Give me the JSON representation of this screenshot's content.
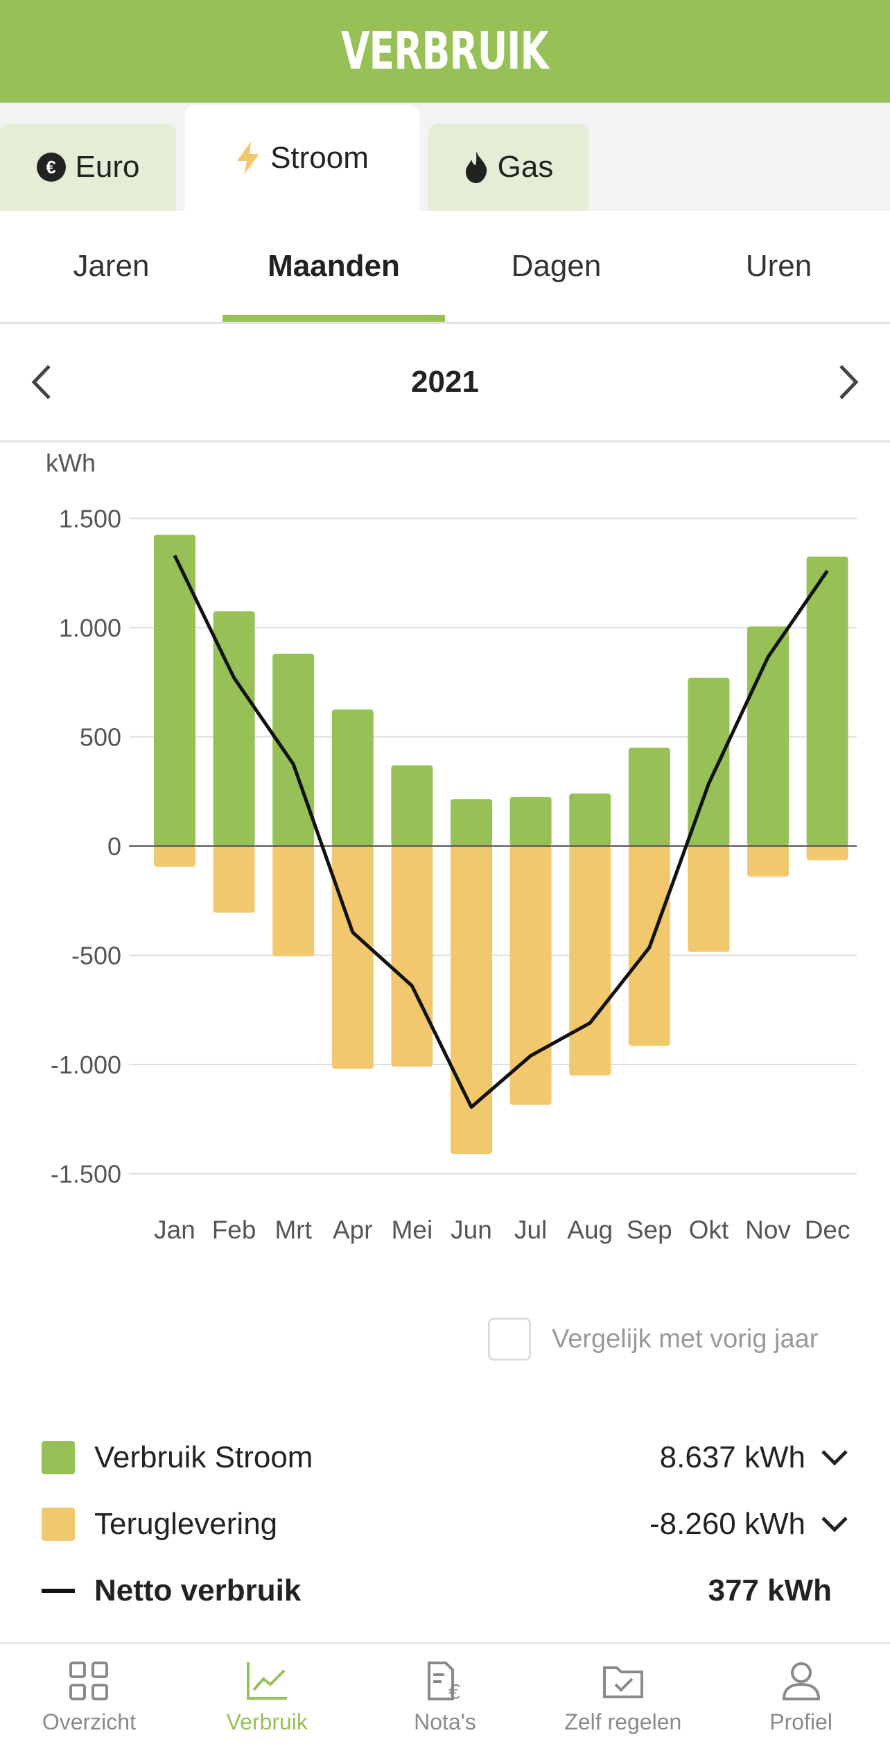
{
  "header": {
    "title": "VERBRUIK"
  },
  "energy_tabs": [
    {
      "label": "Euro",
      "icon": "euro-circle-icon",
      "active": false
    },
    {
      "label": "Stroom",
      "icon": "lightning-icon",
      "active": true
    },
    {
      "label": "Gas",
      "icon": "flame-icon",
      "active": false
    }
  ],
  "period_tabs": [
    {
      "label": "Jaren",
      "active": false
    },
    {
      "label": "Maanden",
      "active": true
    },
    {
      "label": "Dagen",
      "active": false
    },
    {
      "label": "Uren",
      "active": false
    }
  ],
  "year_nav": {
    "year": "2021",
    "prev_icon": "chevron-left-icon",
    "next_icon": "chevron-right-icon"
  },
  "chart_data": {
    "type": "bar",
    "ylabel": "kWh",
    "ylim": [
      -1500,
      1500
    ],
    "yticks": [
      1500,
      1000,
      500,
      0,
      -500,
      -1000,
      -1500
    ],
    "ytick_labels": [
      "1.500",
      "1.000",
      "500",
      "0",
      "-500",
      "-1.000",
      "-1.500"
    ],
    "categories": [
      "Jan",
      "Feb",
      "Mrt",
      "Apr",
      "Mei",
      "Jun",
      "Jul",
      "Aug",
      "Sep",
      "Okt",
      "Nov",
      "Dec"
    ],
    "series": [
      {
        "values": [
          1425,
          1075,
          880,
          625,
          370,
          215,
          225,
          240,
          450,
          770,
          1005,
          1325
        ],
        "color": "#97c156"
      },
      {
        "values": [
          -95,
          -305,
          -505,
          -1020,
          -1010,
          -1410,
          -1185,
          -1050,
          -915,
          -485,
          -140,
          -65
        ],
        "color": "#f2c86f"
      },
      {
        "values": [
          1330,
          770,
          375,
          -395,
          -640,
          -1195,
          -960,
          -810,
          -465,
          285,
          865,
          1260
        ],
        "color": "#111111"
      }
    ],
    "grid": true,
    "legend": "below"
  },
  "compare": {
    "label": "Vergelijk met vorig jaar",
    "checked": false
  },
  "legend": {
    "consumption": {
      "label": "Verbruik Stroom",
      "value": "8.637 kWh",
      "color": "#97c156"
    },
    "return": {
      "label": "Teruglevering",
      "value": "-8.260 kWh",
      "color": "#f2c86f"
    },
    "net": {
      "label": "Netto verbruik",
      "value": "377 kWh"
    }
  },
  "bottom_nav": [
    {
      "label": "Overzicht",
      "icon": "grid-icon",
      "active": false
    },
    {
      "label": "Verbruik",
      "icon": "chart-icon",
      "active": true
    },
    {
      "label": "Nota's",
      "icon": "invoice-icon",
      "active": false
    },
    {
      "label": "Zelf regelen",
      "icon": "folder-check-icon",
      "active": false
    },
    {
      "label": "Profiel",
      "icon": "person-icon",
      "active": false
    }
  ],
  "colors": {
    "brand_green": "#97c156",
    "return_yellow": "#f2c86f"
  }
}
